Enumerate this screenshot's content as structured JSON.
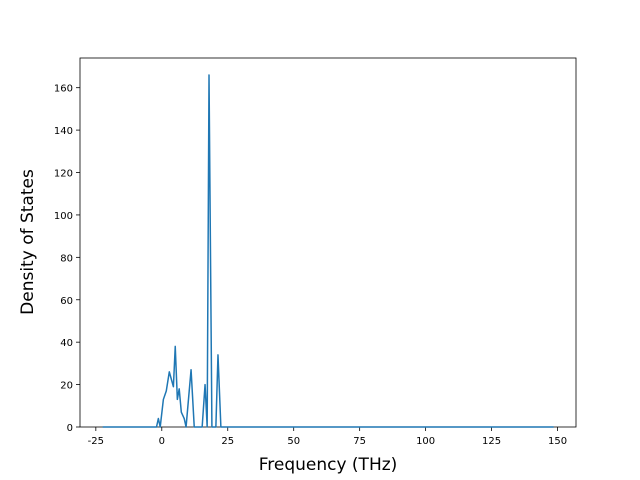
{
  "chart_data": {
    "type": "line",
    "xlabel": "Frequency (THz)",
    "ylabel": "Density of States",
    "x": [
      -22.4,
      -2.0,
      -1.3,
      -0.6,
      0.6,
      1.7,
      2.85,
      4.4,
      5.1,
      5.9,
      6.6,
      7.4,
      8.5,
      9.2,
      11.1,
      12.3,
      15.3,
      16.4,
      17.2,
      17.9,
      19.0,
      20.5,
      21.3,
      22.4,
      148.5
    ],
    "values": [
      0,
      0,
      4,
      0,
      13,
      17,
      26,
      19,
      38,
      13,
      18,
      7,
      4,
      0,
      27,
      0,
      0,
      20,
      0,
      166,
      0,
      0,
      34,
      0,
      0
    ],
    "color": "#1f77b4",
    "xlim": [
      -31,
      157
    ],
    "ylim": [
      0,
      174
    ],
    "xticks": [
      -25,
      0,
      25,
      50,
      75,
      100,
      125,
      150
    ],
    "yticks": [
      0,
      20,
      40,
      60,
      80,
      100,
      120,
      140,
      160
    ],
    "grid": false
  }
}
